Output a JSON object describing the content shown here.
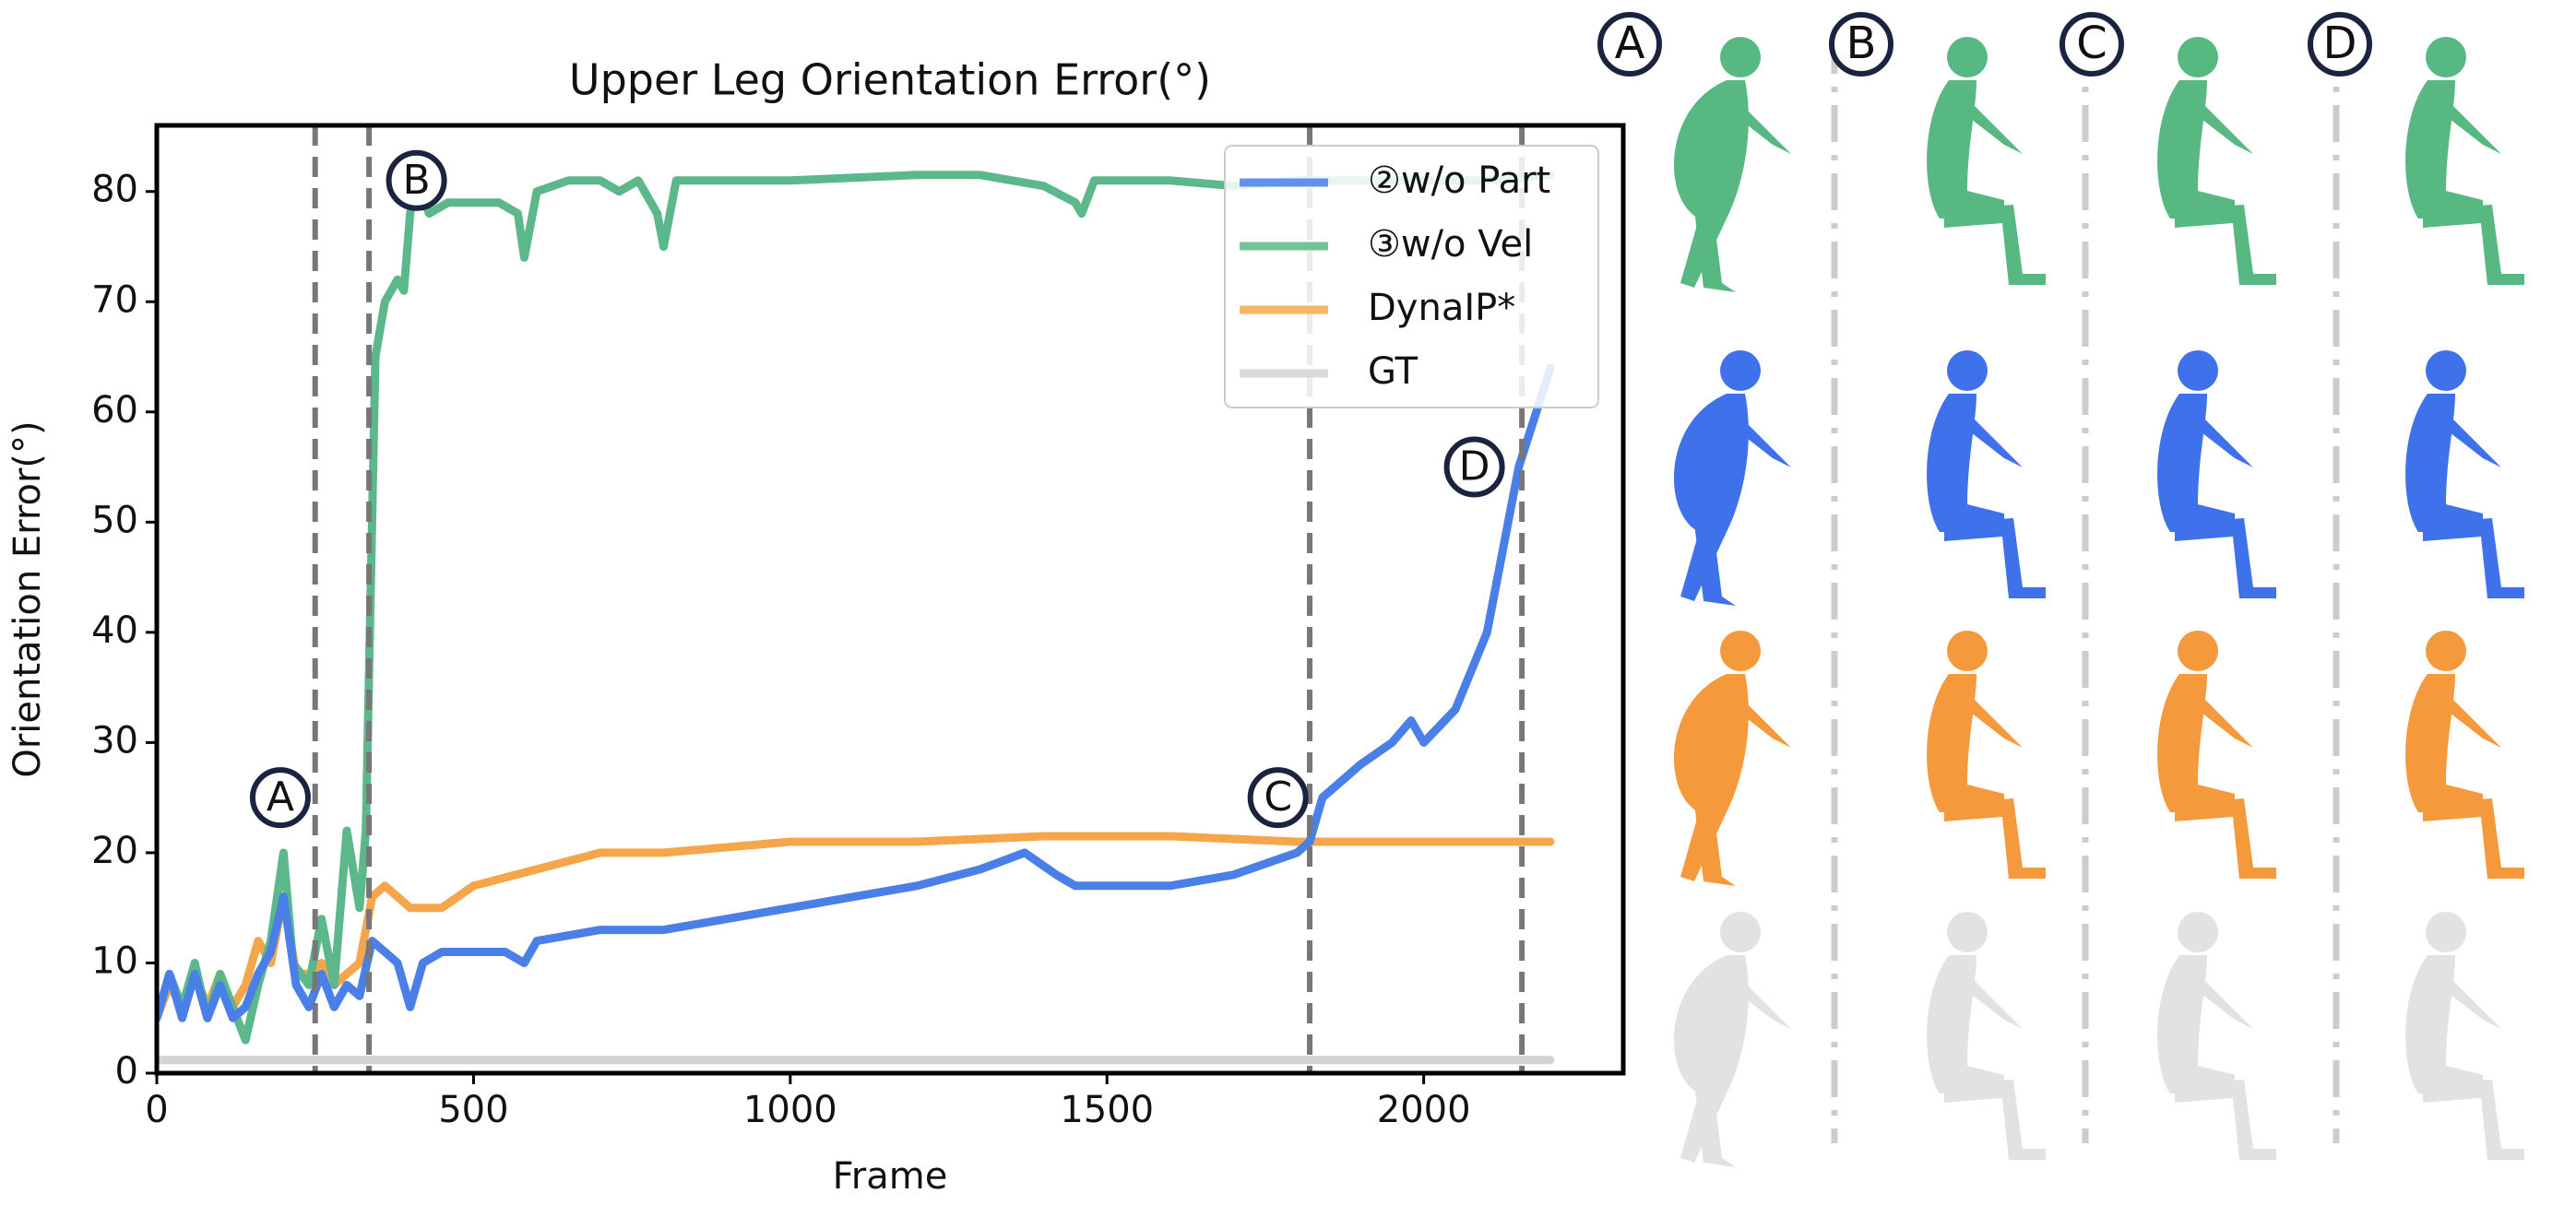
{
  "chart_data": {
    "type": "line",
    "title": "Upper Leg Orientation Error(°)",
    "x_label": "Frame",
    "y_label": "Orientation Error(°)",
    "xlim": [
      0,
      2315
    ],
    "ylim": [
      0,
      86
    ],
    "xticks": [
      0,
      500,
      1000,
      1500,
      2000
    ],
    "yticks": [
      0,
      10,
      20,
      30,
      40,
      50,
      60,
      70,
      80
    ],
    "grid": false,
    "legend": "upper right",
    "vlines": [
      250,
      335,
      1820,
      2155
    ],
    "annotations": [
      {
        "text": "A",
        "x": 195,
        "y": 25
      },
      {
        "text": "B",
        "x": 410,
        "y": 81
      },
      {
        "text": "C",
        "x": 1770,
        "y": 25
      },
      {
        "text": "D",
        "x": 2080,
        "y": 55
      }
    ],
    "series": [
      {
        "name": "②w/o Part",
        "color": "#4a7fe8",
        "x": [
          0,
          20,
          40,
          60,
          80,
          100,
          120,
          140,
          160,
          180,
          200,
          220,
          240,
          260,
          280,
          300,
          320,
          340,
          360,
          380,
          400,
          420,
          450,
          500,
          550,
          580,
          600,
          700,
          800,
          900,
          1000,
          1100,
          1200,
          1300,
          1370,
          1420,
          1450,
          1500,
          1600,
          1700,
          1800,
          1820,
          1840,
          1900,
          1950,
          1980,
          2000,
          2050,
          2100,
          2150,
          2200
        ],
        "values": [
          5,
          9,
          5,
          9,
          5,
          8,
          5,
          6,
          9,
          11,
          16,
          8,
          6,
          9,
          6,
          8,
          7,
          12,
          11,
          10,
          6,
          10,
          11,
          11,
          11,
          10,
          12,
          13,
          13,
          14,
          15,
          16,
          17,
          18.5,
          20,
          18,
          17,
          17,
          17,
          18,
          20,
          21,
          25,
          28,
          30,
          32,
          30,
          33,
          40,
          55,
          64
        ]
      },
      {
        "name": "③w/o Vel",
        "color": "#5cb88a",
        "x": [
          0,
          20,
          40,
          60,
          80,
          100,
          120,
          140,
          160,
          180,
          200,
          215,
          240,
          260,
          280,
          300,
          320,
          330,
          345,
          360,
          380,
          390,
          400,
          410,
          430,
          460,
          500,
          540,
          570,
          580,
          600,
          650,
          700,
          730,
          760,
          790,
          800,
          820,
          900,
          1000,
          1200,
          1300,
          1400,
          1450,
          1460,
          1480,
          1600,
          1700,
          1800,
          1900,
          2000,
          2100,
          2200
        ],
        "values": [
          5,
          9,
          6,
          10,
          5,
          9,
          6,
          3,
          8,
          12,
          20,
          10,
          8,
          14,
          8,
          22,
          15,
          22,
          65,
          70,
          72,
          71,
          78,
          81,
          78,
          79,
          79,
          79,
          78,
          74,
          80,
          81,
          81,
          80,
          81,
          78,
          75,
          81,
          81,
          81,
          81.5,
          81.5,
          80.5,
          79,
          78,
          81,
          81,
          80.5,
          81,
          81,
          81,
          81,
          81.5
        ]
      },
      {
        "name": "DynaIP*",
        "color": "#f5a54a",
        "x": [
          0,
          20,
          40,
          60,
          80,
          100,
          120,
          140,
          160,
          180,
          200,
          220,
          240,
          260,
          280,
          300,
          320,
          340,
          360,
          380,
          400,
          450,
          500,
          600,
          700,
          800,
          1000,
          1200,
          1400,
          1600,
          1800,
          2000,
          2100,
          2200
        ],
        "values": [
          5,
          8,
          6,
          9,
          6,
          9,
          6,
          8,
          12,
          10,
          16,
          9,
          9,
          10,
          8,
          9,
          10,
          16,
          17,
          16,
          15,
          15,
          17,
          18.5,
          20,
          20,
          21,
          21,
          21.5,
          21.5,
          21,
          21,
          21,
          21
        ]
      },
      {
        "name": "GT",
        "color": "#d3d3d3",
        "x": [
          0,
          2200
        ],
        "values": [
          1.2,
          1.2
        ]
      }
    ]
  },
  "panel": {
    "columns": [
      "A",
      "B",
      "C",
      "D"
    ]
  }
}
